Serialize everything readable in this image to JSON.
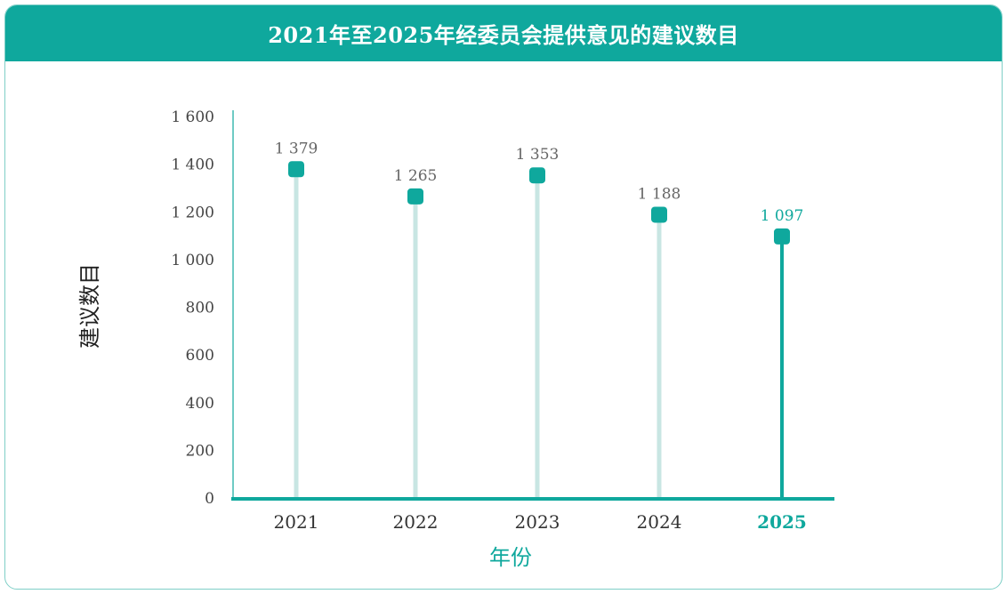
{
  "header": {
    "title": "2021年至2025年经委员会提供意见的建议数目"
  },
  "colors": {
    "accent": "#0fa89d",
    "stem_light": "#c8e6e3",
    "border": "#7fcfc7"
  },
  "chart_data": {
    "type": "lollipop",
    "title": "2021年至2025年经委员会提供意见的建议数目",
    "xlabel": "年份",
    "ylabel": "建议数目",
    "categories": [
      "2021",
      "2022",
      "2023",
      "2024",
      "2025"
    ],
    "values": [
      1379,
      1265,
      1353,
      1188,
      1097
    ],
    "value_labels": [
      "1 379",
      "1 265",
      "1 353",
      "1 188",
      "1 097"
    ],
    "highlight_index": 4,
    "ylim": [
      0,
      1600
    ],
    "yticks": [
      0,
      200,
      400,
      600,
      800,
      1000,
      1200,
      1400,
      1600
    ],
    "ytick_labels": [
      "0",
      "200",
      "400",
      "600",
      "800",
      "1 000",
      "1 200",
      "1 400",
      "1 600"
    ],
    "grid": false
  }
}
